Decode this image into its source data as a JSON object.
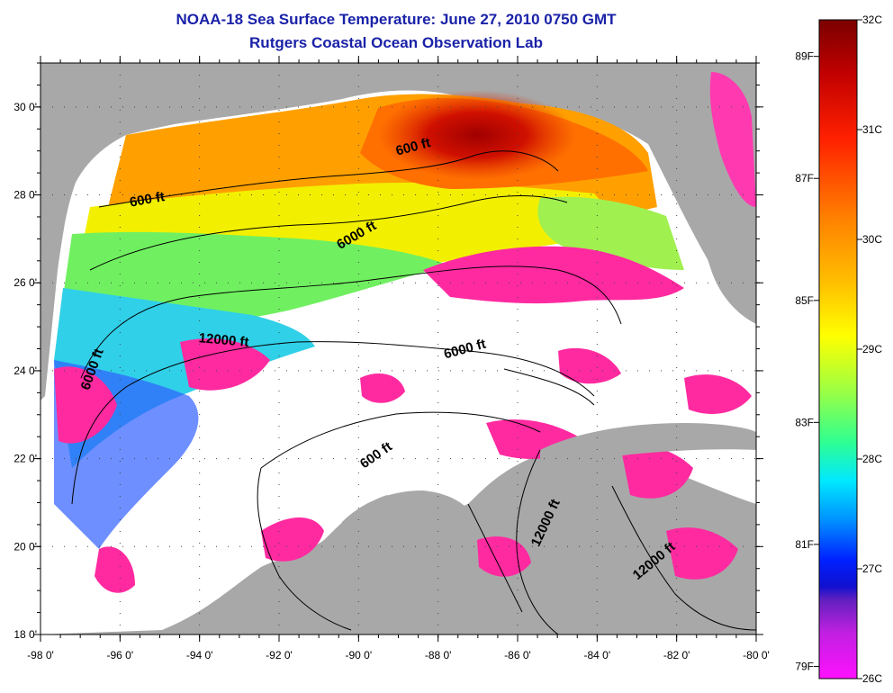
{
  "title": {
    "line1": "NOAA-18 Sea Surface Temperature:  June 27, 2010 0750 GMT",
    "line2": "Rutgers Coastal Ocean Observation Lab"
  },
  "map": {
    "lon_range": [
      -98,
      -80
    ],
    "lat_range": [
      18,
      31
    ],
    "x_ticks": [
      "-98 0'",
      "-96 0'",
      "-94 0'",
      "-92 0'",
      "-90 0'",
      "-88 0'",
      "-86 0'",
      "-84 0'",
      "-82 0'",
      "-80 0'"
    ],
    "y_ticks": [
      "18 0'",
      "20 0'",
      "22 0'",
      "24 0'",
      "26 0'",
      "28 0'",
      "30 0'"
    ],
    "land_color": "#a8a8a8",
    "cloud_color": "#ffffff",
    "contour_labels": [
      {
        "text": "600 ft",
        "lon": -95.3,
        "lat": 27.8,
        "angle": -10
      },
      {
        "text": "600 ft",
        "lon": -88.6,
        "lat": 29.0,
        "angle": -15
      },
      {
        "text": "6000 ft",
        "lon": -90.0,
        "lat": 27.0,
        "angle": -30
      },
      {
        "text": "12000 ft",
        "lon": -93.4,
        "lat": 24.6,
        "angle": 5
      },
      {
        "text": "6000 ft",
        "lon": -87.3,
        "lat": 24.4,
        "angle": -15
      },
      {
        "text": "6000 ft",
        "lon": -96.6,
        "lat": 24.0,
        "angle": -70
      },
      {
        "text": "600 ft",
        "lon": -89.5,
        "lat": 22.0,
        "angle": -35
      },
      {
        "text": "12000 ft",
        "lon": -85.2,
        "lat": 20.5,
        "angle": -65
      },
      {
        "text": "12000 ft",
        "lon": -82.5,
        "lat": 19.6,
        "angle": -40
      }
    ]
  },
  "colorbar": {
    "celsius": [
      "32C",
      "31C",
      "30C",
      "29C",
      "28C",
      "27C",
      "26C"
    ],
    "fahrenheit": [
      "89F",
      "87F",
      "85F",
      "83F",
      "81F",
      "79F"
    ],
    "range_c": [
      26,
      32
    ]
  }
}
